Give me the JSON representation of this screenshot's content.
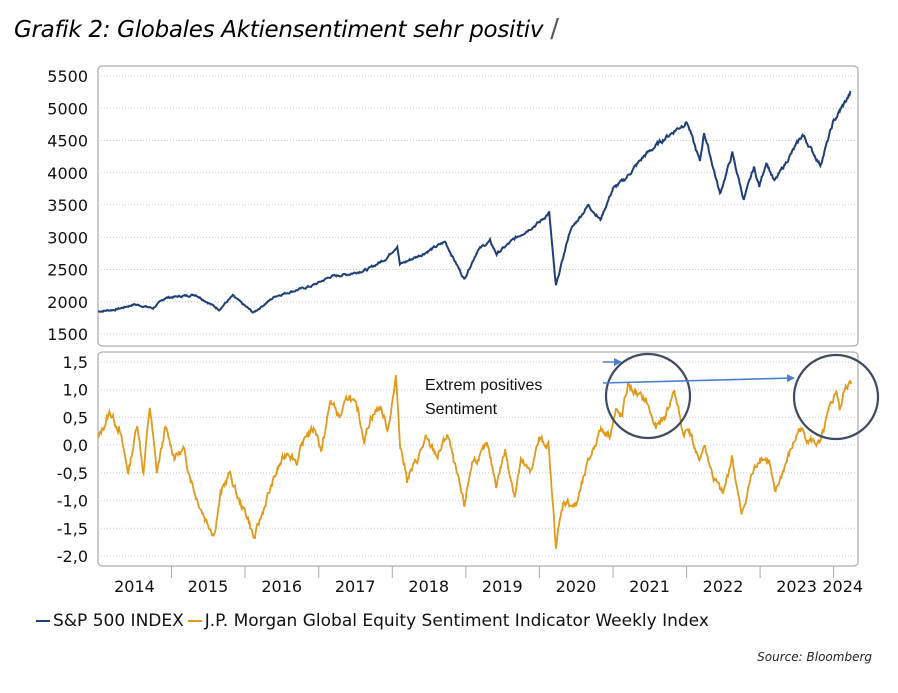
{
  "title": "Grafik 2: Globales Aktiensentiment sehr positiv",
  "source": "Source: Bloomberg",
  "colors": {
    "spx": "#1f3f78",
    "jpm": "#e39a1b",
    "circle": "#3d4a63",
    "arrow": "#4a7fd0",
    "grid": "#c9c9c9"
  },
  "legend": [
    {
      "name": "S&P 500 INDEX",
      "color": "#1f3f78"
    },
    {
      "name": "J.P. Morgan Global Equity Sentiment Indicator Weekly Index",
      "color": "#e39a1b"
    }
  ],
  "annotation": {
    "line1": "Extrem positives",
    "line2": "Sentiment"
  },
  "chart_data": [
    {
      "type": "line",
      "series_name": "S&P 500 INDEX",
      "ylim": [
        1500,
        5500
      ],
      "yticks": [
        "5500",
        "5000",
        "4500",
        "4000",
        "3500",
        "3000",
        "2500",
        "2000",
        "1500"
      ],
      "ytick_values": [
        5500,
        5000,
        4500,
        4000,
        3500,
        3000,
        2500,
        2000,
        1500
      ],
      "grid": true,
      "points": [
        [
          "2014-01-01",
          1850
        ],
        [
          "2014-04-01",
          1880
        ],
        [
          "2014-07-01",
          1960
        ],
        [
          "2014-10-01",
          1900
        ],
        [
          "2014-12-01",
          2060
        ],
        [
          "2015-05-01",
          2110
        ],
        [
          "2015-08-25",
          1880
        ],
        [
          "2015-11-01",
          2090
        ],
        [
          "2016-02-11",
          1830
        ],
        [
          "2016-06-01",
          2090
        ],
        [
          "2016-09-01",
          2170
        ],
        [
          "2016-12-01",
          2250
        ],
        [
          "2017-03-01",
          2390
        ],
        [
          "2017-06-01",
          2430
        ],
        [
          "2017-09-01",
          2500
        ],
        [
          "2017-12-01",
          2670
        ],
        [
          "2018-01-26",
          2870
        ],
        [
          "2018-02-08",
          2580
        ],
        [
          "2018-06-01",
          2740
        ],
        [
          "2018-09-20",
          2930
        ],
        [
          "2018-12-24",
          2350
        ],
        [
          "2019-03-01",
          2800
        ],
        [
          "2019-05-01",
          2940
        ],
        [
          "2019-06-03",
          2740
        ],
        [
          "2019-09-01",
          2980
        ],
        [
          "2019-12-31",
          3230
        ],
        [
          "2020-02-19",
          3380
        ],
        [
          "2020-03-23",
          2240
        ],
        [
          "2020-06-01",
          3100
        ],
        [
          "2020-09-01",
          3500
        ],
        [
          "2020-10-30",
          3270
        ],
        [
          "2020-12-31",
          3750
        ],
        [
          "2021-03-01",
          3900
        ],
        [
          "2021-06-01",
          4250
        ],
        [
          "2021-09-01",
          4500
        ],
        [
          "2021-11-01",
          4650
        ],
        [
          "2022-01-03",
          4790
        ],
        [
          "2022-03-08",
          4170
        ],
        [
          "2022-03-29",
          4630
        ],
        [
          "2022-06-16",
          3670
        ],
        [
          "2022-08-16",
          4300
        ],
        [
          "2022-10-12",
          3580
        ],
        [
          "2022-12-01",
          4080
        ],
        [
          "2022-12-28",
          3790
        ],
        [
          "2023-02-01",
          4170
        ],
        [
          "2023-03-13",
          3860
        ],
        [
          "2023-07-31",
          4590
        ],
        [
          "2023-10-27",
          4120
        ],
        [
          "2023-12-29",
          4770
        ],
        [
          "2024-02-01",
          4960
        ],
        [
          "2024-03-28",
          5250
        ]
      ]
    },
    {
      "type": "line",
      "series_name": "J.P. Morgan Global Equity Sentiment Indicator Weekly Index",
      "ylim": [
        -2.0,
        1.5
      ],
      "yticks": [
        "1,5",
        "1,0",
        "0,5",
        "0,0",
        "-0,5",
        "-1,0",
        "-1,5",
        "-2,0"
      ],
      "ytick_values": [
        1.5,
        1.0,
        0.5,
        0.0,
        -0.5,
        -1.0,
        -1.5,
        -2.0
      ],
      "grid": true,
      "points": [
        [
          "2014-01-01",
          0.1
        ],
        [
          "2014-03-01",
          0.6
        ],
        [
          "2014-04-15",
          0.3
        ],
        [
          "2014-06-01",
          -0.5
        ],
        [
          "2014-07-15",
          0.4
        ],
        [
          "2014-08-15",
          -0.5
        ],
        [
          "2014-09-15",
          0.7
        ],
        [
          "2014-10-20",
          -0.5
        ],
        [
          "2014-12-01",
          0.3
        ],
        [
          "2015-01-15",
          -0.2
        ],
        [
          "2015-03-01",
          -0.1
        ],
        [
          "2015-05-01",
          -0.9
        ],
        [
          "2015-06-15",
          -1.3
        ],
        [
          "2015-08-01",
          -1.6
        ],
        [
          "2015-09-01",
          -0.9
        ],
        [
          "2015-10-15",
          -0.5
        ],
        [
          "2015-12-01",
          -1.0
        ],
        [
          "2016-01-15",
          -1.3
        ],
        [
          "2016-02-15",
          -1.7
        ],
        [
          "2016-04-15",
          -1.0
        ],
        [
          "2016-06-15",
          -0.4
        ],
        [
          "2016-08-01",
          -0.1
        ],
        [
          "2016-09-15",
          -0.3
        ],
        [
          "2016-11-01",
          0.2
        ],
        [
          "2016-12-15",
          0.3
        ],
        [
          "2017-01-15",
          -0.1
        ],
        [
          "2017-03-01",
          0.8
        ],
        [
          "2017-04-15",
          0.5
        ],
        [
          "2017-06-01",
          0.9
        ],
        [
          "2017-07-15",
          0.6
        ],
        [
          "2017-08-15",
          0.1
        ],
        [
          "2017-09-15",
          0.5
        ],
        [
          "2017-11-01",
          0.7
        ],
        [
          "2017-12-10",
          0.3
        ],
        [
          "2018-01-20",
          1.2
        ],
        [
          "2018-02-10",
          0.0
        ],
        [
          "2018-03-15",
          -0.6
        ],
        [
          "2018-05-01",
          -0.3
        ],
        [
          "2018-06-15",
          0.1
        ],
        [
          "2018-08-15",
          -0.2
        ],
        [
          "2018-10-01",
          0.2
        ],
        [
          "2018-11-15",
          -0.5
        ],
        [
          "2018-12-24",
          -1.1
        ],
        [
          "2019-02-01",
          -0.3
        ],
        [
          "2019-03-15",
          -0.2
        ],
        [
          "2019-04-15",
          0.0
        ],
        [
          "2019-06-01",
          -0.7
        ],
        [
          "2019-07-15",
          -0.1
        ],
        [
          "2019-09-01",
          -0.9
        ],
        [
          "2019-10-01",
          -0.3
        ],
        [
          "2019-11-15",
          -0.5
        ],
        [
          "2019-12-31",
          0.1
        ],
        [
          "2020-02-15",
          0.0
        ],
        [
          "2020-03-23",
          -1.8
        ],
        [
          "2020-05-01",
          -1.0
        ],
        [
          "2020-07-01",
          -1.1
        ],
        [
          "2020-09-01",
          -0.3
        ],
        [
          "2020-11-01",
          0.3
        ],
        [
          "2020-12-15",
          0.2
        ],
        [
          "2021-01-15",
          0.6
        ],
        [
          "2021-02-15",
          0.5
        ],
        [
          "2021-03-15",
          1.1
        ],
        [
          "2021-05-01",
          0.9
        ],
        [
          "2021-06-15",
          0.8
        ],
        [
          "2021-08-01",
          0.3
        ],
        [
          "2021-09-15",
          0.5
        ],
        [
          "2021-11-01",
          1.0
        ],
        [
          "2021-12-15",
          0.2
        ],
        [
          "2022-01-15",
          0.3
        ],
        [
          "2022-03-01",
          -0.3
        ],
        [
          "2022-03-30",
          0.0
        ],
        [
          "2022-05-15",
          -0.6
        ],
        [
          "2022-07-01",
          -0.9
        ],
        [
          "2022-08-15",
          -0.2
        ],
        [
          "2022-10-01",
          -1.3
        ],
        [
          "2022-11-15",
          -0.6
        ],
        [
          "2023-01-01",
          -0.2
        ],
        [
          "2023-02-15",
          -0.3
        ],
        [
          "2023-03-15",
          -0.9
        ],
        [
          "2023-05-01",
          -0.4
        ],
        [
          "2023-07-15",
          0.3
        ],
        [
          "2023-09-01",
          0.1
        ],
        [
          "2023-10-27",
          0.0
        ],
        [
          "2023-12-01",
          0.5
        ],
        [
          "2024-01-15",
          1.0
        ],
        [
          "2024-02-01",
          0.6
        ],
        [
          "2024-03-01",
          1.1
        ],
        [
          "2024-03-28",
          1.1
        ]
      ]
    }
  ],
  "x_axis": {
    "tick_labels": [
      "2014",
      "2015",
      "2016",
      "2017",
      "2018",
      "2019",
      "2020",
      "2021",
      "2022",
      "2023",
      "2024"
    ],
    "tick_dates": [
      "2014-07-01",
      "2015-07-01",
      "2016-07-01",
      "2017-07-01",
      "2018-07-01",
      "2019-07-01",
      "2020-07-01",
      "2021-07-01",
      "2022-07-01",
      "2023-07-01",
      "2024-02-15"
    ],
    "range": [
      "2014-01-01",
      "2024-05-01"
    ]
  }
}
